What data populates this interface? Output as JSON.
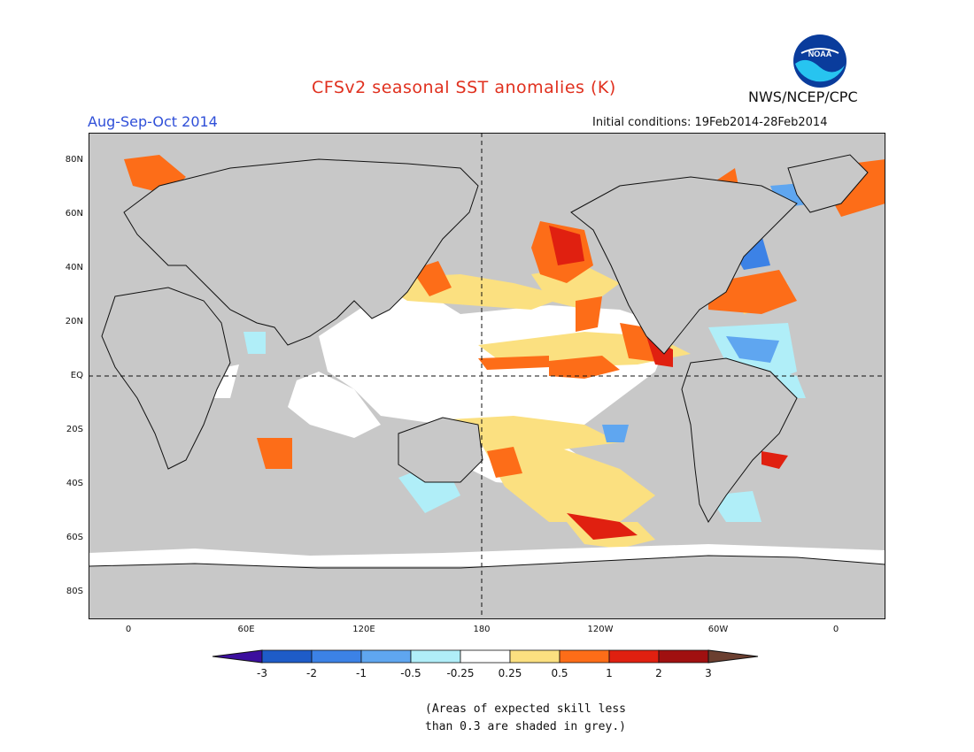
{
  "title": "CFSv2 seasonal SST anomalies (K)",
  "season": "Aug-Sep-Oct 2014",
  "initial_conditions": "Initial conditions: 19Feb2014-28Feb2014",
  "agency": "NWS/NCEP/CPC",
  "logo_text": "NOAA",
  "lat_labels": [
    "80N",
    "60N",
    "40N",
    "20N",
    "EQ",
    "20S",
    "40S",
    "60S",
    "80S"
  ],
  "lon_labels": [
    "0",
    "60E",
    "120E",
    "180",
    "120W",
    "60W",
    "0"
  ],
  "colorbar": {
    "labels": [
      "-3",
      "-2",
      "-1",
      "-0.5",
      "-0.25",
      "0.25",
      "0.5",
      "1",
      "2",
      "3"
    ],
    "colors": [
      "#3c0f9e",
      "#1e5cc8",
      "#3c82e6",
      "#5fa6f0",
      "#b0eef8",
      "#ffffff",
      "#fbe080",
      "#fd6d18",
      "#e02010",
      "#a01010",
      "#6b3f30"
    ]
  },
  "note_lines": [
    "(Areas of expected skill less",
    "than 0.3 are shaded in grey.)"
  ],
  "colors": {
    "grey": "#c8c8c8",
    "title": "#e0301e",
    "season": "#2f4fd8"
  }
}
